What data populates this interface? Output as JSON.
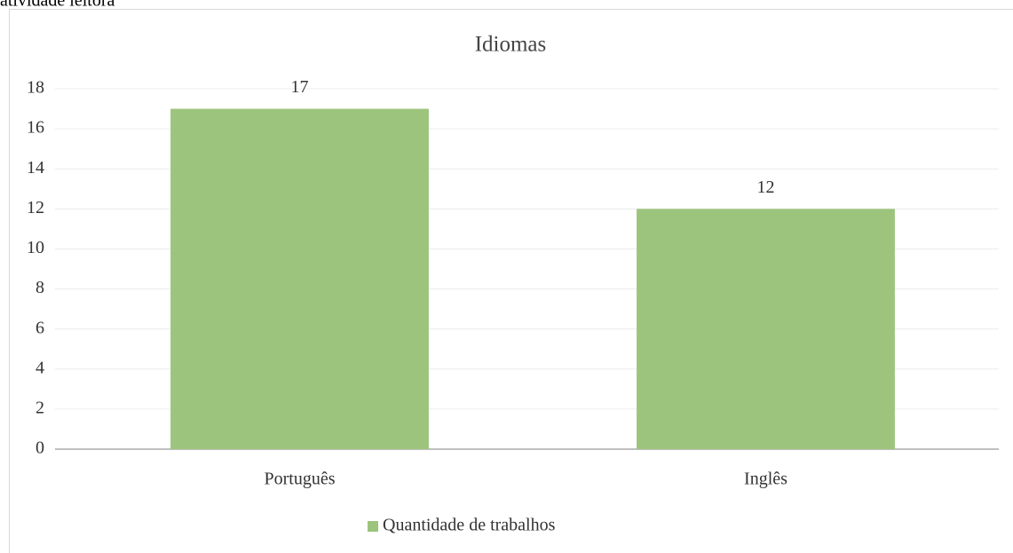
{
  "page_caption": "atividade leitora",
  "chart_data": {
    "type": "bar",
    "title": "Idiomas",
    "categories": [
      "Português",
      "Inglês"
    ],
    "series": [
      {
        "name": "Quantidade de trabalhos",
        "color": "#9dc47c",
        "values": [
          17,
          12
        ]
      }
    ],
    "ylim": [
      0,
      18
    ],
    "yticks": [
      0,
      2,
      4,
      6,
      8,
      10,
      12,
      14,
      16,
      18
    ],
    "grid": true,
    "legend": "bottom",
    "data_labels": true
  }
}
